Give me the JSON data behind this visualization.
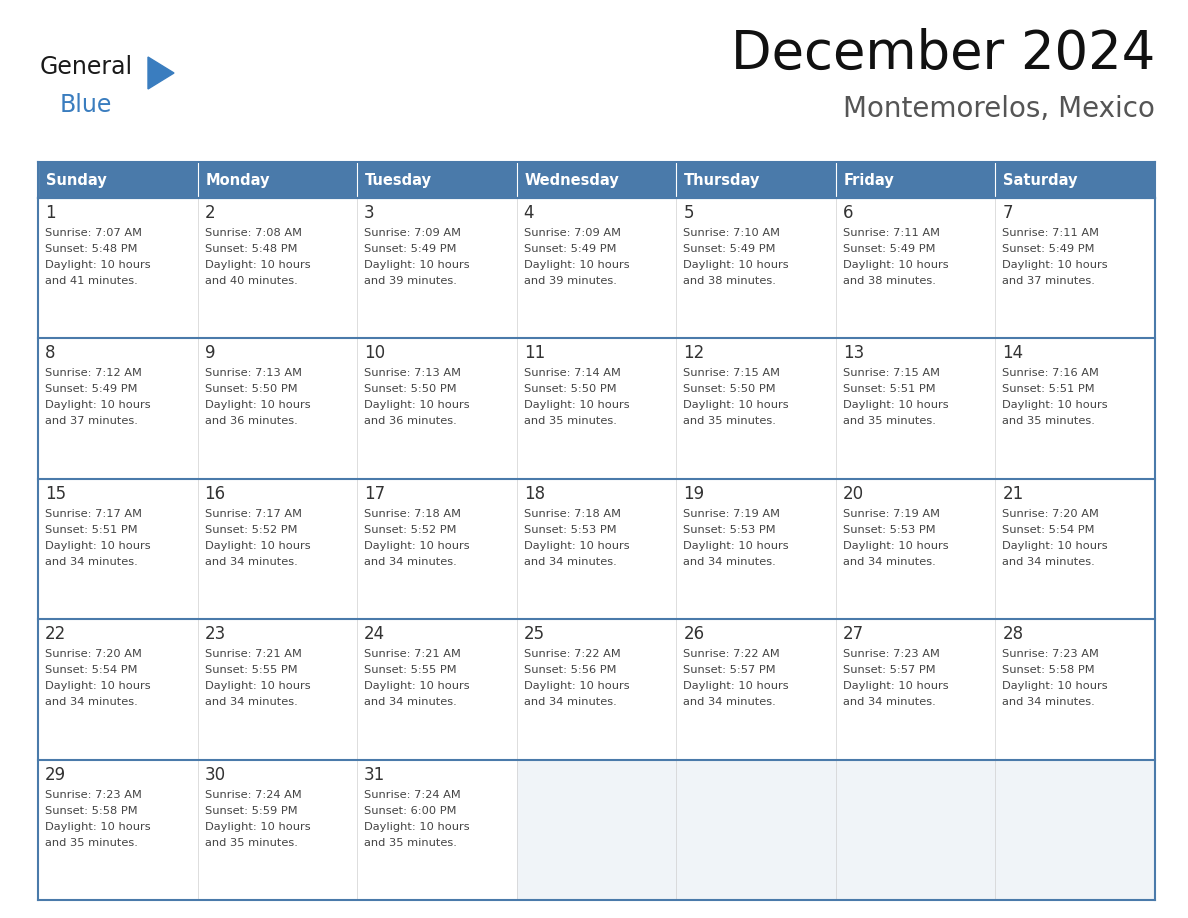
{
  "title": "December 2024",
  "subtitle": "Montemorelos, Mexico",
  "days_of_week": [
    "Sunday",
    "Monday",
    "Tuesday",
    "Wednesday",
    "Thursday",
    "Friday",
    "Saturday"
  ],
  "header_bg": "#4a7aaa",
  "header_text_color": "#ffffff",
  "cell_bg_white": "#ffffff",
  "cell_bg_empty": "#f0f4f8",
  "border_color": "#4a7aaa",
  "row_border_color": "#4a7aaa",
  "col_border_color": "#cccccc",
  "day_num_color": "#333333",
  "text_color": "#444444",
  "calendar_data": [
    [
      {
        "day": 1,
        "sunrise": "7:07 AM",
        "sunset": "5:48 PM",
        "daylight_tail": "41 minutes."
      },
      {
        "day": 2,
        "sunrise": "7:08 AM",
        "sunset": "5:48 PM",
        "daylight_tail": "40 minutes."
      },
      {
        "day": 3,
        "sunrise": "7:09 AM",
        "sunset": "5:49 PM",
        "daylight_tail": "39 minutes."
      },
      {
        "day": 4,
        "sunrise": "7:09 AM",
        "sunset": "5:49 PM",
        "daylight_tail": "39 minutes."
      },
      {
        "day": 5,
        "sunrise": "7:10 AM",
        "sunset": "5:49 PM",
        "daylight_tail": "38 minutes."
      },
      {
        "day": 6,
        "sunrise": "7:11 AM",
        "sunset": "5:49 PM",
        "daylight_tail": "38 minutes."
      },
      {
        "day": 7,
        "sunrise": "7:11 AM",
        "sunset": "5:49 PM",
        "daylight_tail": "37 minutes."
      }
    ],
    [
      {
        "day": 8,
        "sunrise": "7:12 AM",
        "sunset": "5:49 PM",
        "daylight_tail": "37 minutes."
      },
      {
        "day": 9,
        "sunrise": "7:13 AM",
        "sunset": "5:50 PM",
        "daylight_tail": "36 minutes."
      },
      {
        "day": 10,
        "sunrise": "7:13 AM",
        "sunset": "5:50 PM",
        "daylight_tail": "36 minutes."
      },
      {
        "day": 11,
        "sunrise": "7:14 AM",
        "sunset": "5:50 PM",
        "daylight_tail": "35 minutes."
      },
      {
        "day": 12,
        "sunrise": "7:15 AM",
        "sunset": "5:50 PM",
        "daylight_tail": "35 minutes."
      },
      {
        "day": 13,
        "sunrise": "7:15 AM",
        "sunset": "5:51 PM",
        "daylight_tail": "35 minutes."
      },
      {
        "day": 14,
        "sunrise": "7:16 AM",
        "sunset": "5:51 PM",
        "daylight_tail": "35 minutes."
      }
    ],
    [
      {
        "day": 15,
        "sunrise": "7:17 AM",
        "sunset": "5:51 PM",
        "daylight_tail": "34 minutes."
      },
      {
        "day": 16,
        "sunrise": "7:17 AM",
        "sunset": "5:52 PM",
        "daylight_tail": "34 minutes."
      },
      {
        "day": 17,
        "sunrise": "7:18 AM",
        "sunset": "5:52 PM",
        "daylight_tail": "34 minutes."
      },
      {
        "day": 18,
        "sunrise": "7:18 AM",
        "sunset": "5:53 PM",
        "daylight_tail": "34 minutes."
      },
      {
        "day": 19,
        "sunrise": "7:19 AM",
        "sunset": "5:53 PM",
        "daylight_tail": "34 minutes."
      },
      {
        "day": 20,
        "sunrise": "7:19 AM",
        "sunset": "5:53 PM",
        "daylight_tail": "34 minutes."
      },
      {
        "day": 21,
        "sunrise": "7:20 AM",
        "sunset": "5:54 PM",
        "daylight_tail": "34 minutes."
      }
    ],
    [
      {
        "day": 22,
        "sunrise": "7:20 AM",
        "sunset": "5:54 PM",
        "daylight_tail": "34 minutes."
      },
      {
        "day": 23,
        "sunrise": "7:21 AM",
        "sunset": "5:55 PM",
        "daylight_tail": "34 minutes."
      },
      {
        "day": 24,
        "sunrise": "7:21 AM",
        "sunset": "5:55 PM",
        "daylight_tail": "34 minutes."
      },
      {
        "day": 25,
        "sunrise": "7:22 AM",
        "sunset": "5:56 PM",
        "daylight_tail": "34 minutes."
      },
      {
        "day": 26,
        "sunrise": "7:22 AM",
        "sunset": "5:57 PM",
        "daylight_tail": "34 minutes."
      },
      {
        "day": 27,
        "sunrise": "7:23 AM",
        "sunset": "5:57 PM",
        "daylight_tail": "34 minutes."
      },
      {
        "day": 28,
        "sunrise": "7:23 AM",
        "sunset": "5:58 PM",
        "daylight_tail": "34 minutes."
      }
    ],
    [
      {
        "day": 29,
        "sunrise": "7:23 AM",
        "sunset": "5:58 PM",
        "daylight_tail": "35 minutes."
      },
      {
        "day": 30,
        "sunrise": "7:24 AM",
        "sunset": "5:59 PM",
        "daylight_tail": "35 minutes."
      },
      {
        "day": 31,
        "sunrise": "7:24 AM",
        "sunset": "6:00 PM",
        "daylight_tail": "35 minutes."
      },
      null,
      null,
      null,
      null
    ]
  ],
  "logo_text1": "General",
  "logo_text2": "Blue",
  "logo_color1": "#1a1a1a",
  "logo_color2": "#3a7dbf",
  "logo_triangle_color": "#3a7dbf",
  "title_color": "#111111",
  "subtitle_color": "#555555"
}
